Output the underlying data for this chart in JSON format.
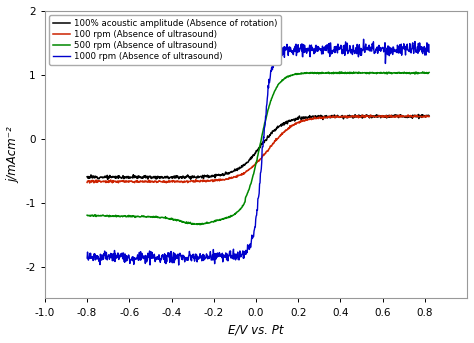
{
  "title": "",
  "xlabel": "E/V vs. Pt",
  "ylabel": "j/mAcm⁻²",
  "xlim": [
    -1.0,
    1.0
  ],
  "ylim": [
    -2.5,
    2.0
  ],
  "yticks": [
    -2,
    -1,
    0,
    1,
    2
  ],
  "xticks": [
    -1.0,
    -0.8,
    -0.6,
    -0.4,
    -0.2,
    0.0,
    0.2,
    0.4,
    0.6,
    0.8
  ],
  "legend": [
    "100% acoustic amplitude (Absence of rotation)",
    "100 rpm (Absence of ultrasound)",
    "500 rpm (Absence of ultrasound)",
    "1000 rpm (Absence of ultrasound)"
  ],
  "colors": [
    "black",
    "#cc2200",
    "#008800",
    "#0000cc"
  ],
  "background_color": "#ffffff"
}
